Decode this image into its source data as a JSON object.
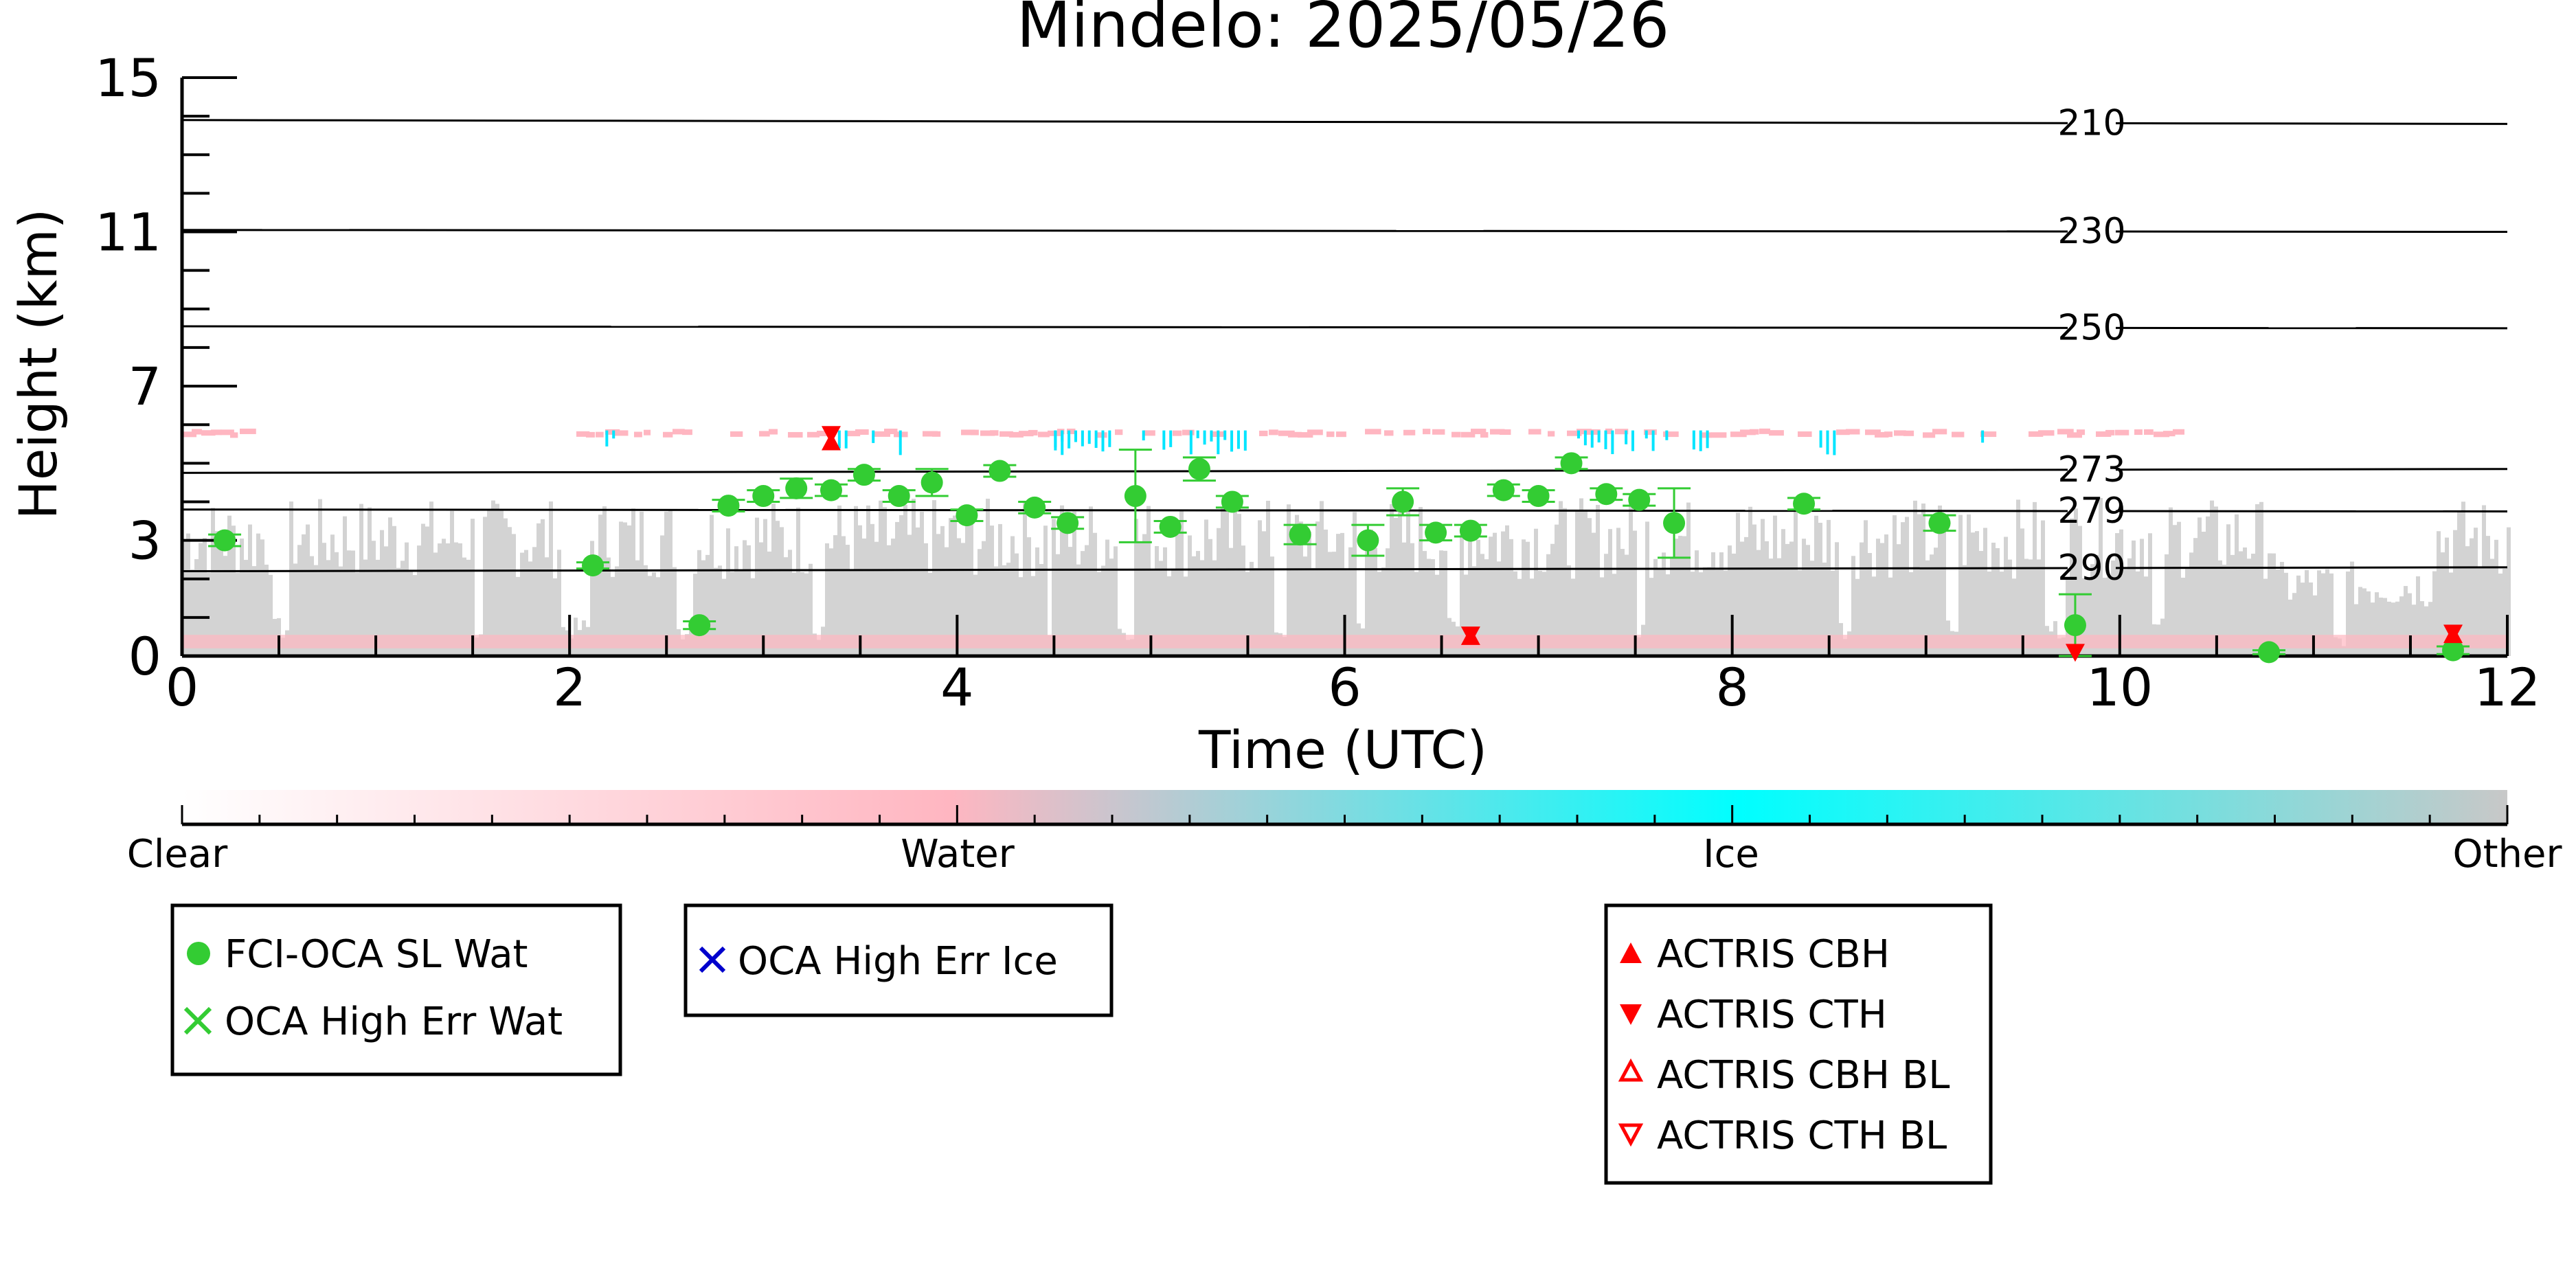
{
  "chart_data": {
    "type": "scatter",
    "title": "Mindelo: 2025/05/26",
    "xlabel": "Time (UTC)",
    "ylabel": "Height (km)",
    "xlim": [
      0,
      12
    ],
    "ylim": [
      0,
      15
    ],
    "x_ticks": [
      "0",
      "2",
      "4",
      "6",
      "8",
      "10",
      "12"
    ],
    "y_ticks": [
      "0",
      "3",
      "7",
      "11",
      "15"
    ],
    "y_tick_values": [
      0,
      3,
      7,
      11,
      15
    ],
    "isotherms": [
      {
        "label": "210",
        "y": [
          13.9,
          13.8
        ]
      },
      {
        "label": "230",
        "y": [
          11.05,
          11.0
        ]
      },
      {
        "label": "250",
        "y": [
          8.55,
          8.5
        ]
      },
      {
        "label": "273",
        "y": [
          4.75,
          4.85
        ]
      },
      {
        "label": "279",
        "y": [
          3.8,
          3.75
        ]
      },
      {
        "label": "290",
        "y": [
          2.2,
          2.3
        ]
      }
    ],
    "colorbar": {
      "labels": [
        "Clear",
        "Water",
        "Ice",
        "Other"
      ],
      "colors": [
        "#ffffff",
        "#ffb6c1",
        "#00ffff",
        "#c8c8c8"
      ]
    },
    "background_colors": {
      "other": "#d3d3d3",
      "water": "#ffb6c1",
      "ice": "#00e5ff"
    },
    "series": [
      {
        "name": "FCI-OCA SL Wat",
        "marker": "filled-circle",
        "color": "#33cc33",
        "points": [
          {
            "x": 0.22,
            "y": 3.0,
            "err": 0.15
          },
          {
            "x": 2.12,
            "y": 2.35,
            "err": 0.08
          },
          {
            "x": 2.67,
            "y": 0.8,
            "err": 0.1
          },
          {
            "x": 2.82,
            "y": 3.9,
            "err": 0.15
          },
          {
            "x": 3.0,
            "y": 4.15,
            "err": 0.15
          },
          {
            "x": 3.17,
            "y": 4.35,
            "err": 0.25
          },
          {
            "x": 3.35,
            "y": 4.3,
            "err": 0.15
          },
          {
            "x": 3.52,
            "y": 4.7,
            "err": 0.15
          },
          {
            "x": 3.7,
            "y": 4.15,
            "err": 0.15
          },
          {
            "x": 3.87,
            "y": 4.5,
            "err": 0.35
          },
          {
            "x": 4.05,
            "y": 3.65,
            "err": 0.15
          },
          {
            "x": 4.22,
            "y": 4.8,
            "err": 0.15
          },
          {
            "x": 4.4,
            "y": 3.85,
            "err": 0.15
          },
          {
            "x": 4.57,
            "y": 3.45,
            "err": 0.15
          },
          {
            "x": 4.92,
            "y": 4.15,
            "err": 1.2
          },
          {
            "x": 5.1,
            "y": 3.35,
            "err": 0.15
          },
          {
            "x": 5.25,
            "y": 4.85,
            "err": 0.3
          },
          {
            "x": 5.42,
            "y": 4.0,
            "err": 0.15
          },
          {
            "x": 5.77,
            "y": 3.15,
            "err": 0.25
          },
          {
            "x": 6.12,
            "y": 3.0,
            "err": 0.4
          },
          {
            "x": 6.3,
            "y": 4.0,
            "err": 0.35
          },
          {
            "x": 6.47,
            "y": 3.2,
            "err": 0.2
          },
          {
            "x": 6.65,
            "y": 3.25,
            "err": 0.15
          },
          {
            "x": 6.82,
            "y": 4.3,
            "err": 0.15
          },
          {
            "x": 7.0,
            "y": 4.15,
            "err": 0.15
          },
          {
            "x": 7.17,
            "y": 5.0,
            "err": 0.15
          },
          {
            "x": 7.35,
            "y": 4.2,
            "err": 0.15
          },
          {
            "x": 7.52,
            "y": 4.05,
            "err": 0.15
          },
          {
            "x": 7.7,
            "y": 3.45,
            "err": 0.9
          },
          {
            "x": 8.37,
            "y": 3.95,
            "err": 0.15
          },
          {
            "x": 9.07,
            "y": 3.45,
            "err": 0.2
          },
          {
            "x": 9.77,
            "y": 0.8,
            "err": 0.8
          },
          {
            "x": 10.77,
            "y": 0.1,
            "err": 0.05
          },
          {
            "x": 11.72,
            "y": 0.15,
            "err": 0.1
          }
        ]
      },
      {
        "name": "OCA High Err Wat",
        "marker": "x",
        "color": "#33cc33",
        "points": []
      },
      {
        "name": "OCA High Err Ice",
        "marker": "x",
        "color": "#0000cc",
        "points": []
      },
      {
        "name": "ACTRIS CBH",
        "marker": "triangle-up",
        "color": "#ff0000",
        "points": [
          {
            "x": 3.35,
            "y": 5.55
          },
          {
            "x": 6.65,
            "y": 0.5
          },
          {
            "x": 11.72,
            "y": 0.55
          }
        ]
      },
      {
        "name": "ACTRIS CTH",
        "marker": "triangle-down",
        "color": "#ff0000",
        "points": [
          {
            "x": 3.35,
            "y": 5.75
          },
          {
            "x": 6.65,
            "y": 0.55
          },
          {
            "x": 11.72,
            "y": 0.6
          },
          {
            "x": 9.77,
            "y": 0.1
          }
        ]
      },
      {
        "name": "ACTRIS CBH BL",
        "marker": "triangle-up-open",
        "color": "#ff0000",
        "points": []
      },
      {
        "name": "ACTRIS CTH BL",
        "marker": "triangle-down-open",
        "color": "#ff0000",
        "points": []
      }
    ],
    "legend": [
      {
        "box": "left",
        "entries": [
          "FCI-OCA SL Wat",
          "OCA High Err Wat"
        ]
      },
      {
        "box": "middle",
        "entries": [
          "OCA High Err Ice"
        ]
      },
      {
        "box": "right",
        "entries": [
          "ACTRIS CBH",
          "ACTRIS CTH",
          "ACTRIS CBH BL",
          "ACTRIS CTH BL"
        ]
      }
    ],
    "grid": false
  }
}
